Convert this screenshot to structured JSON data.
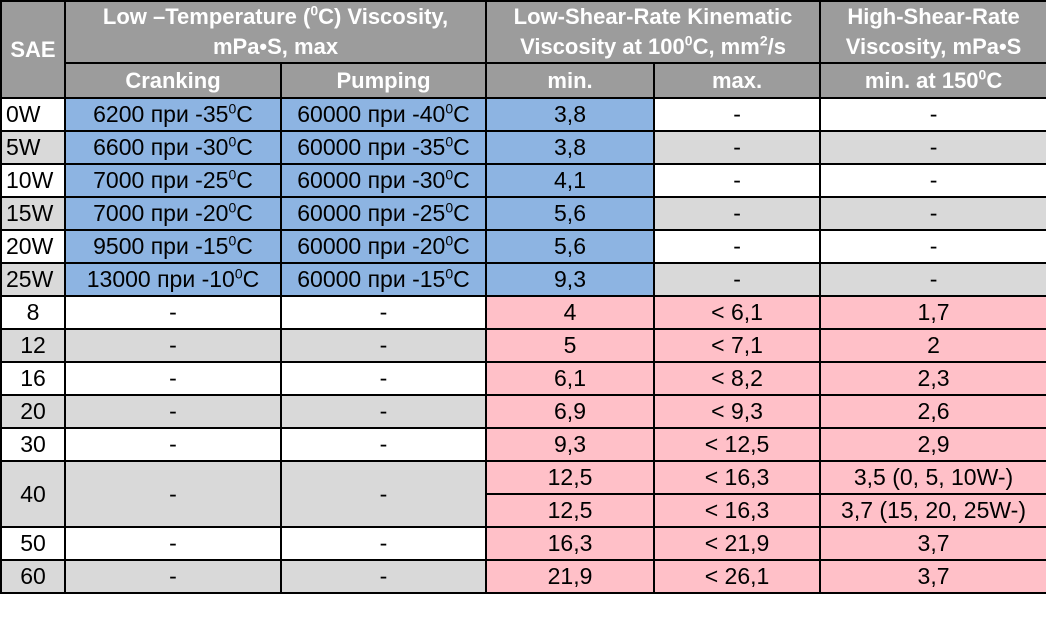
{
  "chart_data": {
    "type": "table",
    "header": {
      "sae": "SAE",
      "low_temp_line1_pre": "Low –Temperature (",
      "low_temp_sup": "0",
      "low_temp_line1_post": "C) Viscosity,",
      "low_temp_line2": "mPa•S, max",
      "kinematic_line1": "Low-Shear-Rate Kinematic",
      "kinematic_line2_pre": "Viscosity at 100",
      "kinematic_sup1": "0",
      "kinematic_line2_mid": "C, mm",
      "kinematic_sup2": "2",
      "kinematic_line2_post": "/s",
      "hs_line1": "High-Shear-Rate",
      "hs_line2": "Viscosity, mPa•S"
    },
    "subheader": {
      "cranking": "Cranking",
      "pumping": "Pumping",
      "min": "min.",
      "max": "max.",
      "hs_pre": "min. at 150",
      "hs_sup": "0",
      "hs_post": "C"
    },
    "winter_rows": [
      {
        "sae": "0W",
        "crank_val": "6200 при -35",
        "pump_val": "60000 при -40",
        "min": "3,8",
        "max": "-",
        "hs": "-"
      },
      {
        "sae": "5W",
        "crank_val": "6600 при -30",
        "pump_val": "60000 при -35",
        "min": "3,8",
        "max": "-",
        "hs": "-"
      },
      {
        "sae": "10W",
        "crank_val": "7000 при -25",
        "pump_val": "60000 при -30",
        "min": "4,1",
        "max": "-",
        "hs": "-"
      },
      {
        "sae": "15W",
        "crank_val": "7000 при -20",
        "pump_val": "60000 при -25",
        "min": "5,6",
        "max": "-",
        "hs": "-"
      },
      {
        "sae": "20W",
        "crank_val": "9500 при -15",
        "pump_val": "60000 при -20",
        "min": "5,6",
        "max": "-",
        "hs": "-"
      },
      {
        "sae": "25W",
        "crank_val": "13000 при -10",
        "pump_val": "60000 при -15",
        "min": "9,3",
        "max": "-",
        "hs": "-"
      }
    ],
    "degree_sup": "0",
    "degree_unit": "C",
    "summer_rows": [
      {
        "sae": "8",
        "crank": "-",
        "pump": "-",
        "min": "4",
        "max": "< 6,1",
        "hs": "1,7"
      },
      {
        "sae": "12",
        "crank": "-",
        "pump": "-",
        "min": "5",
        "max": "< 7,1",
        "hs": "2"
      },
      {
        "sae": "16",
        "crank": "-",
        "pump": "-",
        "min": "6,1",
        "max": "< 8,2",
        "hs": "2,3"
      },
      {
        "sae": "20",
        "crank": "-",
        "pump": "-",
        "min": "6,9",
        "max": "< 9,3",
        "hs": "2,6"
      },
      {
        "sae": "30",
        "crank": "-",
        "pump": "-",
        "min": "9,3",
        "max": "< 12,5",
        "hs": "2,9"
      }
    ],
    "row40": {
      "sae": "40",
      "crank": "-",
      "pump": "-",
      "a": {
        "min": "12,5",
        "max": "< 16,3",
        "hs": "3,5 (0, 5, 10W-)"
      },
      "b": {
        "min": "12,5",
        "max": "< 16,3",
        "hs": "3,7 (15, 20, 25W-)"
      }
    },
    "tail_rows": [
      {
        "sae": "50",
        "crank": "-",
        "pump": "-",
        "min": "16,3",
        "max": "< 21,9",
        "hs": "3,7"
      },
      {
        "sae": "60",
        "crank": "-",
        "pump": "-",
        "min": "21,9",
        "max": "< 26,1",
        "hs": "3,7"
      }
    ],
    "colors": {
      "header_bg": "#9c9c9c",
      "header_text": "#ffffff",
      "row_white": "#ffffff",
      "row_gray": "#d9d9d9",
      "winter_highlight": "#8db4e2",
      "summer_highlight": "#ffc0c8"
    }
  }
}
